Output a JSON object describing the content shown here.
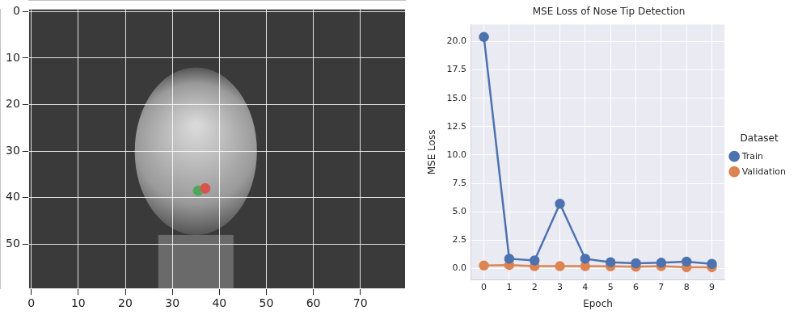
{
  "chart_data": [
    {
      "type": "scatter",
      "x": [
        35.5,
        37
      ],
      "values": [
        38.5,
        38
      ],
      "colors": [
        "#4ea85c",
        "#d9534f"
      ],
      "xlim": [
        -0.5,
        79.5
      ],
      "ylim": [
        59.5,
        -0.5
      ],
      "xticks": [
        0,
        10,
        20,
        30,
        40,
        50,
        60,
        70
      ],
      "yticks": [
        0,
        10,
        20,
        30,
        40,
        50
      ],
      "grid": true
    },
    {
      "type": "line",
      "title": "MSE Loss of Nose Tip Detection",
      "x_label": "Epoch",
      "y_label": "MSE Loss",
      "legend_title": "Dataset",
      "legend": "right",
      "grid": true,
      "marker": "circle",
      "categories": [
        "0",
        "1",
        "2",
        "3",
        "4",
        "5",
        "6",
        "7",
        "8",
        "9"
      ],
      "series": [
        {
          "name": "Train",
          "color": "#4c72b0",
          "values": [
            20.4,
            0.85,
            0.7,
            5.7,
            0.85,
            0.55,
            0.45,
            0.5,
            0.6,
            0.4
          ]
        },
        {
          "name": "Validation",
          "color": "#dd8452",
          "values": [
            0.25,
            0.3,
            0.2,
            0.2,
            0.2,
            0.18,
            0.15,
            0.2,
            0.1,
            0.1
          ]
        }
      ],
      "ylim": [
        -1,
        21.5
      ],
      "yticks": [
        {
          "value": 0,
          "label": "0.0"
        },
        {
          "value": 2.5,
          "label": "2.5"
        },
        {
          "value": 5,
          "label": "5.0"
        },
        {
          "value": 7.5,
          "label": "7.5"
        },
        {
          "value": 10,
          "label": "10.0"
        },
        {
          "value": 12.5,
          "label": "12.5"
        },
        {
          "value": 15,
          "label": "15.0"
        },
        {
          "value": 17.5,
          "label": "17.5"
        },
        {
          "value": 20,
          "label": "20.0"
        }
      ]
    }
  ]
}
